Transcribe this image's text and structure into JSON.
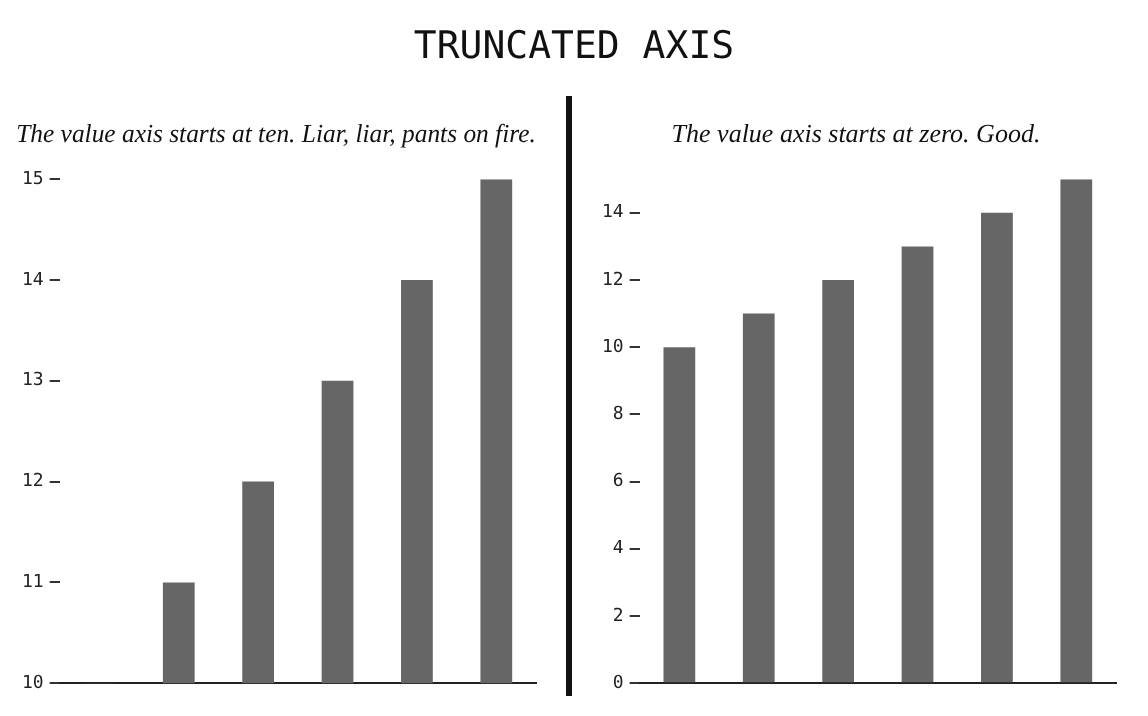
{
  "chart_data": [
    {
      "type": "bar",
      "title": "TRUNCATED AXIS",
      "subtitle": "The value axis starts at ten. Liar, liar, pants on fire.",
      "categories": [
        null,
        null,
        null,
        null,
        null,
        null
      ],
      "values": [
        10,
        11,
        12,
        13,
        14,
        15
      ],
      "color": "#666666",
      "ylim": [
        10,
        15
      ],
      "yticks": [
        10,
        11,
        12,
        13,
        14,
        15
      ],
      "grid": false,
      "legend": false,
      "tick_labels": "y"
    },
    {
      "type": "bar",
      "subtitle": "The value axis starts at zero. Good.",
      "categories": [
        null,
        null,
        null,
        null,
        null,
        null
      ],
      "values": [
        10,
        11,
        12,
        13,
        14,
        15
      ],
      "color": "#666666",
      "ylim": [
        0,
        15
      ],
      "yticks": [
        0,
        2,
        4,
        6,
        8,
        10,
        12,
        14
      ],
      "grid": false,
      "legend": false,
      "tick_labels": "y"
    }
  ]
}
